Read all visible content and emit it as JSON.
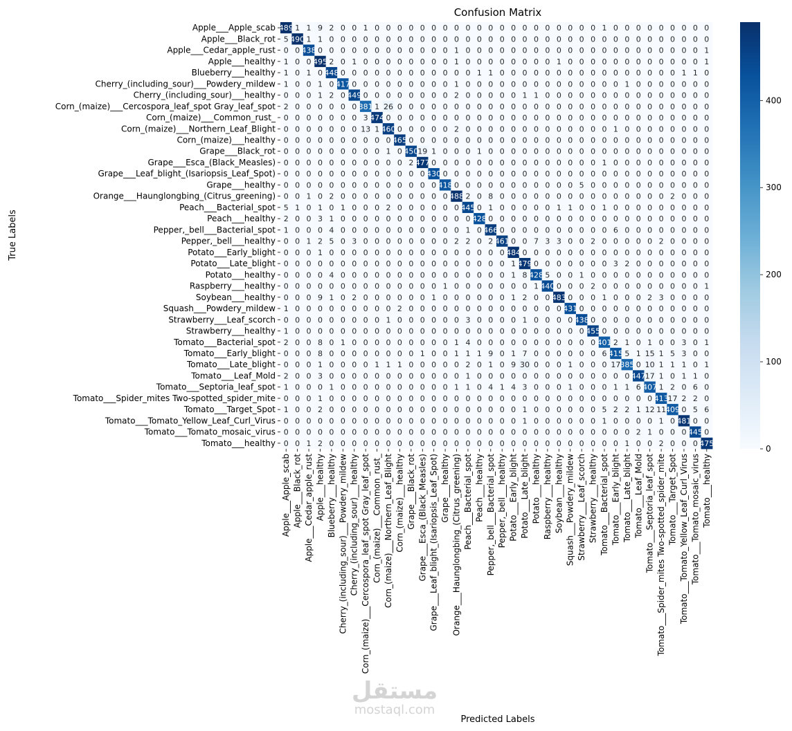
{
  "watermark": {
    "arabic": "مستقل",
    "latin": "mostaql.com"
  },
  "chart_data": {
    "type": "heatmap",
    "title": "Confusion Matrix",
    "xlabel": "Predicted Labels",
    "ylabel": "True Labels",
    "colormap": "Blues",
    "vmin": 0,
    "vmax": 490,
    "colorbar_ticks": [
      0,
      100,
      200,
      300,
      400
    ],
    "categories": [
      "Apple___Apple_scab",
      "Apple___Black_rot",
      "Apple___Cedar_apple_rust",
      "Apple___healthy",
      "Blueberry___healthy",
      "Cherry_(including_sour)___Powdery_mildew",
      "Cherry_(including_sour)___healthy",
      "Corn_(maize)___Cercospora_leaf_spot Gray_leaf_spot",
      "Corn_(maize)___Common_rust_",
      "Corn_(maize)___Northern_Leaf_Blight",
      "Corn_(maize)___healthy",
      "Grape___Black_rot",
      "Grape___Esca_(Black_Measles)",
      "Grape___Leaf_blight_(Isariopsis_Leaf_Spot)",
      "Grape___healthy",
      "Orange___Haunglongbing_(Citrus_greening)",
      "Peach___Bacterial_spot",
      "Peach___healthy",
      "Pepper,_bell___Bacterial_spot",
      "Pepper,_bell___healthy",
      "Potato___Early_blight",
      "Potato___Late_blight",
      "Potato___healthy",
      "Raspberry___healthy",
      "Soybean___healthy",
      "Squash___Powdery_mildew",
      "Strawberry___Leaf_scorch",
      "Strawberry___healthy",
      "Tomato___Bacterial_spot",
      "Tomato___Early_blight",
      "Tomato___Late_blight",
      "Tomato___Leaf_Mold",
      "Tomato___Septoria_leaf_spot",
      "Tomato___Spider_mites Two-spotted_spider_mite",
      "Tomato___Target_Spot",
      "Tomato___Tomato_Yellow_Leaf_Curl_Virus",
      "Tomato___Tomato_mosaic_virus",
      "Tomato___healthy"
    ],
    "matrix": [
      [
        489,
        1,
        1,
        9,
        2,
        0,
        0,
        1,
        0,
        0,
        0,
        0,
        0,
        0,
        0,
        0,
        0,
        0,
        0,
        0,
        0,
        0,
        0,
        0,
        0,
        0,
        0,
        0,
        1,
        0,
        0,
        0,
        0,
        0,
        0,
        0,
        0,
        0
      ],
      [
        5,
        490,
        1,
        1,
        0,
        0,
        0,
        0,
        0,
        0,
        0,
        0,
        0,
        0,
        0,
        0,
        0,
        0,
        0,
        0,
        0,
        0,
        0,
        0,
        0,
        0,
        0,
        0,
        0,
        0,
        0,
        0,
        0,
        0,
        0,
        0,
        0,
        0
      ],
      [
        0,
        0,
        438,
        0,
        0,
        0,
        0,
        0,
        0,
        0,
        0,
        0,
        0,
        0,
        0,
        1,
        0,
        0,
        0,
        0,
        0,
        0,
        0,
        0,
        0,
        0,
        0,
        0,
        0,
        0,
        0,
        0,
        0,
        0,
        0,
        0,
        0,
        1
      ],
      [
        1,
        0,
        0,
        495,
        2,
        0,
        1,
        0,
        0,
        0,
        0,
        0,
        0,
        0,
        0,
        1,
        0,
        0,
        0,
        0,
        0,
        0,
        0,
        0,
        1,
        0,
        0,
        0,
        0,
        0,
        0,
        0,
        0,
        0,
        0,
        0,
        0,
        1
      ],
      [
        1,
        0,
        1,
        0,
        448,
        0,
        0,
        0,
        0,
        0,
        0,
        0,
        0,
        0,
        0,
        0,
        0,
        1,
        1,
        0,
        0,
        0,
        0,
        0,
        0,
        0,
        0,
        0,
        0,
        0,
        0,
        0,
        0,
        0,
        0,
        1,
        1,
        0
      ],
      [
        1,
        0,
        0,
        1,
        0,
        417,
        0,
        0,
        0,
        0,
        0,
        0,
        0,
        0,
        0,
        1,
        0,
        0,
        0,
        0,
        0,
        0,
        0,
        0,
        0,
        0,
        0,
        0,
        0,
        0,
        1,
        0,
        0,
        0,
        0,
        0,
        0,
        0
      ],
      [
        0,
        0,
        0,
        1,
        2,
        0,
        449,
        0,
        0,
        0,
        0,
        0,
        0,
        0,
        0,
        2,
        0,
        0,
        0,
        0,
        0,
        1,
        1,
        0,
        0,
        0,
        0,
        0,
        0,
        0,
        0,
        0,
        0,
        0,
        0,
        0,
        0,
        0
      ],
      [
        2,
        0,
        0,
        0,
        0,
        0,
        0,
        381,
        1,
        26,
        0,
        0,
        0,
        0,
        0,
        0,
        0,
        0,
        0,
        0,
        0,
        0,
        0,
        0,
        0,
        0,
        0,
        0,
        0,
        0,
        0,
        0,
        0,
        0,
        0,
        0,
        0,
        0
      ],
      [
        0,
        0,
        0,
        0,
        0,
        0,
        0,
        3,
        474,
        0,
        0,
        0,
        0,
        0,
        0,
        0,
        0,
        0,
        0,
        0,
        0,
        0,
        0,
        0,
        0,
        0,
        0,
        0,
        0,
        0,
        0,
        0,
        0,
        0,
        0,
        0,
        0,
        0
      ],
      [
        0,
        0,
        0,
        0,
        0,
        0,
        0,
        13,
        1,
        460,
        0,
        0,
        0,
        0,
        0,
        2,
        0,
        0,
        0,
        0,
        0,
        0,
        0,
        0,
        0,
        0,
        0,
        0,
        0,
        1,
        0,
        0,
        0,
        0,
        0,
        0,
        0,
        0
      ],
      [
        0,
        0,
        0,
        0,
        0,
        0,
        0,
        0,
        0,
        0,
        465,
        0,
        0,
        0,
        0,
        0,
        0,
        0,
        0,
        0,
        0,
        0,
        0,
        0,
        0,
        0,
        0,
        0,
        0,
        0,
        0,
        0,
        0,
        0,
        0,
        0,
        0,
        0
      ],
      [
        0,
        0,
        0,
        0,
        0,
        0,
        0,
        0,
        0,
        1,
        0,
        450,
        19,
        1,
        0,
        0,
        0,
        1,
        0,
        0,
        0,
        0,
        0,
        0,
        0,
        0,
        0,
        0,
        0,
        0,
        0,
        0,
        0,
        0,
        0,
        0,
        0,
        0
      ],
      [
        0,
        0,
        0,
        0,
        0,
        0,
        0,
        0,
        0,
        0,
        0,
        2,
        477,
        0,
        0,
        0,
        0,
        0,
        0,
        0,
        0,
        0,
        0,
        0,
        0,
        0,
        0,
        0,
        1,
        0,
        0,
        0,
        0,
        0,
        0,
        0,
        0,
        0
      ],
      [
        0,
        0,
        0,
        0,
        0,
        0,
        0,
        0,
        0,
        0,
        0,
        0,
        0,
        430,
        0,
        0,
        0,
        0,
        0,
        0,
        0,
        0,
        0,
        0,
        0,
        0,
        0,
        0,
        0,
        0,
        0,
        0,
        0,
        0,
        0,
        0,
        0,
        0
      ],
      [
        0,
        0,
        0,
        0,
        0,
        0,
        0,
        0,
        0,
        0,
        0,
        0,
        0,
        0,
        418,
        0,
        0,
        0,
        0,
        0,
        0,
        0,
        0,
        0,
        0,
        0,
        5,
        0,
        0,
        0,
        0,
        0,
        0,
        0,
        0,
        0,
        0,
        0
      ],
      [
        0,
        0,
        1,
        0,
        2,
        0,
        0,
        0,
        0,
        0,
        0,
        0,
        0,
        0,
        0,
        488,
        2,
        0,
        8,
        0,
        0,
        0,
        0,
        0,
        0,
        0,
        0,
        0,
        0,
        0,
        0,
        0,
        0,
        0,
        2,
        0,
        0,
        0
      ],
      [
        5,
        1,
        0,
        1,
        0,
        1,
        0,
        0,
        0,
        2,
        0,
        0,
        0,
        0,
        0,
        0,
        445,
        0,
        1,
        0,
        0,
        0,
        0,
        0,
        1,
        1,
        0,
        0,
        1,
        0,
        0,
        0,
        0,
        0,
        0,
        0,
        0,
        0
      ],
      [
        2,
        0,
        0,
        3,
        1,
        0,
        0,
        0,
        0,
        0,
        0,
        0,
        0,
        0,
        0,
        0,
        0,
        428,
        0,
        0,
        0,
        0,
        0,
        0,
        0,
        0,
        0,
        0,
        0,
        0,
        0,
        0,
        0,
        0,
        0,
        0,
        0,
        0
      ],
      [
        1,
        0,
        0,
        0,
        4,
        0,
        0,
        0,
        0,
        0,
        0,
        0,
        0,
        0,
        0,
        0,
        1,
        0,
        466,
        0,
        0,
        0,
        0,
        0,
        0,
        0,
        0,
        0,
        0,
        6,
        0,
        0,
        0,
        0,
        0,
        0,
        0,
        0
      ],
      [
        0,
        0,
        1,
        2,
        5,
        0,
        3,
        0,
        0,
        0,
        0,
        0,
        0,
        0,
        0,
        2,
        2,
        0,
        2,
        461,
        0,
        0,
        7,
        3,
        3,
        0,
        0,
        2,
        0,
        0,
        0,
        0,
        0,
        2,
        0,
        0,
        0,
        0
      ],
      [
        0,
        0,
        0,
        1,
        0,
        0,
        0,
        0,
        0,
        0,
        0,
        0,
        0,
        0,
        0,
        0,
        0,
        0,
        0,
        0,
        484,
        0,
        0,
        0,
        0,
        0,
        0,
        0,
        0,
        0,
        0,
        0,
        0,
        0,
        0,
        0,
        0,
        0
      ],
      [
        0,
        0,
        0,
        0,
        0,
        0,
        0,
        0,
        0,
        0,
        0,
        0,
        0,
        0,
        0,
        0,
        0,
        0,
        0,
        0,
        1,
        479,
        0,
        0,
        0,
        0,
        0,
        0,
        0,
        3,
        2,
        0,
        0,
        0,
        0,
        0,
        0,
        0
      ],
      [
        0,
        0,
        0,
        0,
        4,
        0,
        0,
        0,
        0,
        0,
        0,
        0,
        0,
        0,
        0,
        0,
        0,
        0,
        0,
        0,
        1,
        8,
        428,
        5,
        0,
        0,
        1,
        0,
        0,
        0,
        0,
        0,
        0,
        0,
        0,
        0,
        0,
        0
      ],
      [
        0,
        0,
        0,
        0,
        0,
        0,
        0,
        0,
        0,
        0,
        0,
        0,
        0,
        0,
        1,
        0,
        0,
        0,
        0,
        0,
        0,
        0,
        1,
        440,
        0,
        0,
        0,
        2,
        0,
        0,
        0,
        0,
        0,
        0,
        0,
        0,
        0,
        1
      ],
      [
        0,
        0,
        0,
        9,
        1,
        0,
        2,
        0,
        0,
        0,
        0,
        0,
        0,
        1,
        0,
        0,
        0,
        0,
        0,
        0,
        1,
        2,
        0,
        0,
        483,
        0,
        0,
        0,
        1,
        0,
        0,
        0,
        2,
        3,
        0,
        0,
        0,
        0
      ],
      [
        1,
        0,
        0,
        0,
        0,
        0,
        0,
        0,
        0,
        0,
        2,
        0,
        0,
        0,
        0,
        0,
        0,
        0,
        0,
        0,
        0,
        0,
        0,
        0,
        0,
        431,
        0,
        0,
        0,
        0,
        0,
        0,
        0,
        0,
        0,
        0,
        0,
        0
      ],
      [
        0,
        0,
        0,
        0,
        0,
        0,
        0,
        0,
        0,
        1,
        0,
        0,
        0,
        0,
        0,
        0,
        3,
        0,
        0,
        0,
        0,
        1,
        0,
        0,
        0,
        0,
        438,
        0,
        0,
        0,
        0,
        0,
        0,
        0,
        0,
        0,
        0,
        0
      ],
      [
        1,
        0,
        0,
        0,
        0,
        0,
        0,
        0,
        0,
        0,
        0,
        0,
        0,
        0,
        0,
        0,
        0,
        0,
        0,
        0,
        0,
        0,
        0,
        0,
        0,
        0,
        0,
        455,
        0,
        0,
        0,
        0,
        0,
        0,
        0,
        0,
        0,
        0
      ],
      [
        2,
        0,
        0,
        8,
        0,
        1,
        0,
        0,
        0,
        0,
        0,
        0,
        0,
        0,
        0,
        1,
        4,
        0,
        0,
        0,
        0,
        0,
        0,
        0,
        0,
        0,
        0,
        0,
        401,
        2,
        1,
        0,
        1,
        0,
        0,
        3,
        0,
        1
      ],
      [
        0,
        0,
        0,
        8,
        0,
        0,
        0,
        0,
        0,
        0,
        0,
        0,
        1,
        0,
        0,
        1,
        1,
        1,
        9,
        0,
        1,
        7,
        0,
        0,
        0,
        0,
        0,
        0,
        6,
        415,
        5,
        1,
        15,
        1,
        5,
        3,
        0,
        0
      ],
      [
        0,
        0,
        0,
        1,
        0,
        0,
        0,
        0,
        1,
        1,
        1,
        0,
        0,
        0,
        0,
        0,
        2,
        0,
        1,
        0,
        9,
        30,
        0,
        0,
        0,
        1,
        0,
        0,
        0,
        17,
        385,
        0,
        10,
        1,
        1,
        1,
        0,
        1
      ],
      [
        2,
        0,
        0,
        3,
        0,
        0,
        0,
        0,
        0,
        0,
        0,
        0,
        0,
        0,
        0,
        0,
        1,
        0,
        0,
        0,
        0,
        0,
        0,
        0,
        0,
        0,
        0,
        0,
        0,
        0,
        0,
        447,
        17,
        1,
        0,
        1,
        1,
        0
      ],
      [
        1,
        0,
        0,
        0,
        1,
        0,
        0,
        0,
        0,
        0,
        0,
        0,
        0,
        0,
        0,
        1,
        1,
        0,
        4,
        1,
        4,
        3,
        0,
        0,
        0,
        1,
        0,
        0,
        0,
        1,
        1,
        6,
        407,
        1,
        2,
        0,
        6,
        0
      ],
      [
        0,
        0,
        0,
        1,
        0,
        0,
        0,
        0,
        0,
        0,
        0,
        0,
        0,
        0,
        0,
        0,
        0,
        0,
        0,
        0,
        0,
        0,
        0,
        0,
        0,
        0,
        0,
        0,
        0,
        0,
        0,
        0,
        0,
        413,
        17,
        2,
        2,
        0
      ],
      [
        1,
        0,
        0,
        2,
        0,
        0,
        0,
        0,
        0,
        0,
        0,
        0,
        0,
        0,
        0,
        0,
        0,
        0,
        0,
        0,
        0,
        1,
        0,
        0,
        0,
        0,
        0,
        0,
        5,
        2,
        2,
        1,
        12,
        11,
        409,
        0,
        5,
        6
      ],
      [
        0,
        0,
        0,
        0,
        0,
        0,
        0,
        0,
        0,
        0,
        0,
        0,
        0,
        0,
        0,
        0,
        0,
        0,
        0,
        0,
        0,
        1,
        0,
        0,
        0,
        0,
        0,
        0,
        1,
        0,
        0,
        0,
        0,
        1,
        0,
        481,
        0,
        0
      ],
      [
        0,
        0,
        0,
        0,
        0,
        0,
        0,
        0,
        0,
        0,
        0,
        0,
        0,
        0,
        0,
        0,
        0,
        0,
        0,
        0,
        0,
        0,
        0,
        0,
        0,
        0,
        0,
        0,
        0,
        0,
        0,
        2,
        1,
        0,
        0,
        0,
        445,
        0
      ],
      [
        0,
        0,
        1,
        2,
        0,
        0,
        0,
        0,
        0,
        0,
        0,
        0,
        0,
        0,
        0,
        0,
        0,
        0,
        0,
        0,
        0,
        0,
        0,
        0,
        0,
        0,
        0,
        0,
        0,
        0,
        1,
        0,
        0,
        2,
        0,
        0,
        0,
        475
      ]
    ]
  }
}
